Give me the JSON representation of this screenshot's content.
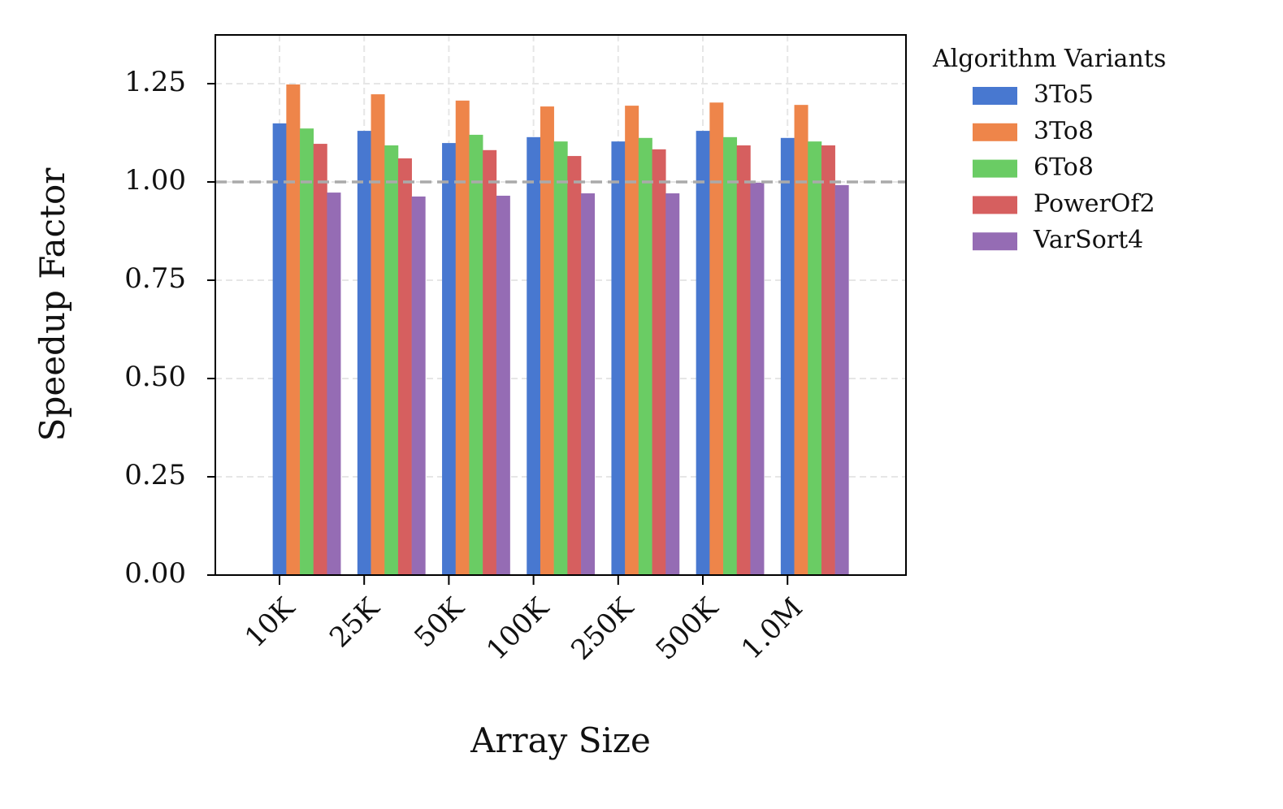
{
  "chart_data": {
    "type": "bar",
    "xlabel": "Array Size",
    "ylabel": "Speedup Factor",
    "legend_title": "Algorithm Variants",
    "legend_position": "outside-right",
    "categories": [
      "10K",
      "25K",
      "50K",
      "100K",
      "250K",
      "500K",
      "1.0M"
    ],
    "series": [
      {
        "name": "3To5",
        "color": "#4878d0",
        "values": [
          1.149,
          1.13,
          1.099,
          1.114,
          1.103,
          1.13,
          1.112
        ]
      },
      {
        "name": "3To8",
        "color": "#ee854a",
        "values": [
          1.248,
          1.223,
          1.207,
          1.192,
          1.194,
          1.202,
          1.196
        ]
      },
      {
        "name": "6To8",
        "color": "#6acc64",
        "values": [
          1.136,
          1.093,
          1.12,
          1.103,
          1.112,
          1.114,
          1.103
        ]
      },
      {
        "name": "PowerOf2",
        "color": "#d65f5f",
        "values": [
          1.097,
          1.06,
          1.081,
          1.066,
          1.083,
          1.093,
          1.093
        ]
      },
      {
        "name": "VarSort4",
        "color": "#956cb4",
        "values": [
          0.973,
          0.963,
          0.965,
          0.971,
          0.971,
          0.998,
          0.992
        ]
      }
    ],
    "reference_line": 1.0,
    "ylim": [
      0,
      1.374
    ],
    "yticks": [
      {
        "value": 0,
        "label": "0.00"
      },
      {
        "value": 0.25,
        "label": "0.25"
      },
      {
        "value": 0.5,
        "label": "0.50"
      },
      {
        "value": 0.75,
        "label": "0.75"
      },
      {
        "value": 1,
        "label": "1.00"
      },
      {
        "value": 1.25,
        "label": "1.25"
      }
    ],
    "grid": true
  }
}
